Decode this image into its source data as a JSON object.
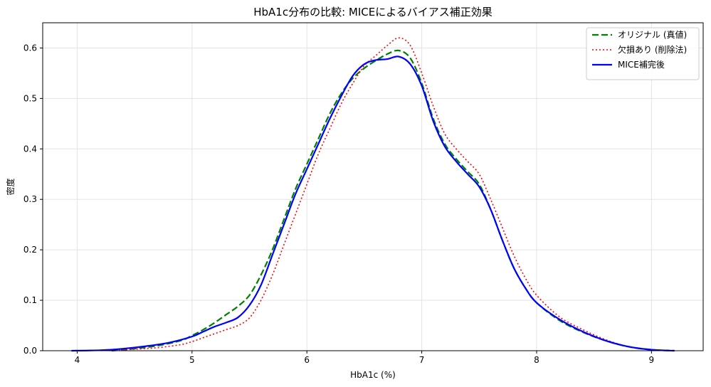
{
  "chart_data": {
    "type": "line",
    "title": "HbA1c分布の比較: MICEによるバイアス補正効果",
    "xlabel": "HbA1c (%)",
    "ylabel": "密度",
    "xlim": [
      3.7,
      9.45
    ],
    "ylim": [
      0,
      0.65
    ],
    "xticks": [
      "4",
      "5",
      "6",
      "7",
      "8",
      "9"
    ],
    "yticks": [
      "0.0",
      "0.1",
      "0.2",
      "0.3",
      "0.4",
      "0.5",
      "0.6"
    ],
    "grid": true,
    "legend_position": "top-right",
    "series": [
      {
        "name": "オリジナル (真値)",
        "color": "#008000",
        "style": "dashed",
        "x": [
          4.3,
          4.5,
          4.7,
          4.9,
          5.0,
          5.1,
          5.2,
          5.3,
          5.4,
          5.5,
          5.6,
          5.7,
          5.8,
          5.9,
          6.0,
          6.1,
          6.2,
          6.3,
          6.4,
          6.5,
          6.6,
          6.7,
          6.8,
          6.9,
          7.0,
          7.1,
          7.2,
          7.3,
          7.4,
          7.5,
          7.6,
          7.7,
          7.8,
          7.9,
          8.0,
          8.2,
          8.4,
          8.6,
          8.8,
          9.0,
          9.2
        ],
        "y": [
          0.0,
          0.004,
          0.01,
          0.02,
          0.03,
          0.042,
          0.056,
          0.072,
          0.088,
          0.11,
          0.15,
          0.2,
          0.26,
          0.32,
          0.37,
          0.42,
          0.47,
          0.51,
          0.54,
          0.56,
          0.575,
          0.588,
          0.595,
          0.58,
          0.53,
          0.46,
          0.41,
          0.38,
          0.355,
          0.33,
          0.28,
          0.22,
          0.165,
          0.125,
          0.095,
          0.06,
          0.037,
          0.02,
          0.008,
          0.002,
          0.0
        ]
      },
      {
        "name": "欠損あり (削除法)",
        "color": "#ff0000",
        "style": "dotted",
        "x": [
          4.3,
          4.5,
          4.7,
          4.9,
          5.0,
          5.1,
          5.2,
          5.3,
          5.4,
          5.5,
          5.6,
          5.7,
          5.8,
          5.9,
          6.0,
          6.1,
          6.2,
          6.3,
          6.4,
          6.5,
          6.6,
          6.7,
          6.8,
          6.9,
          7.0,
          7.1,
          7.2,
          7.3,
          7.4,
          7.5,
          7.6,
          7.7,
          7.8,
          7.9,
          8.0,
          8.2,
          8.4,
          8.6,
          8.8,
          9.0,
          9.2
        ],
        "y": [
          0.0,
          0.003,
          0.006,
          0.012,
          0.018,
          0.026,
          0.034,
          0.042,
          0.05,
          0.065,
          0.1,
          0.15,
          0.21,
          0.27,
          0.33,
          0.39,
          0.44,
          0.49,
          0.53,
          0.565,
          0.585,
          0.605,
          0.62,
          0.605,
          0.55,
          0.485,
          0.43,
          0.4,
          0.375,
          0.35,
          0.3,
          0.245,
          0.19,
          0.145,
          0.11,
          0.067,
          0.042,
          0.022,
          0.008,
          0.002,
          0.0
        ]
      },
      {
        "name": "MICE補完後",
        "color": "#0000ff",
        "style": "solid",
        "x": [
          3.95,
          4.2,
          4.4,
          4.6,
          4.8,
          5.0,
          5.1,
          5.2,
          5.3,
          5.4,
          5.5,
          5.6,
          5.7,
          5.8,
          5.9,
          6.0,
          6.1,
          6.2,
          6.3,
          6.4,
          6.5,
          6.6,
          6.7,
          6.8,
          6.9,
          7.0,
          7.1,
          7.2,
          7.3,
          7.4,
          7.5,
          7.6,
          7.7,
          7.8,
          7.9,
          8.0,
          8.2,
          8.4,
          8.6,
          8.8,
          9.0,
          9.2
        ],
        "y": [
          0.0,
          0.001,
          0.004,
          0.009,
          0.016,
          0.028,
          0.038,
          0.048,
          0.056,
          0.066,
          0.09,
          0.13,
          0.19,
          0.25,
          0.31,
          0.36,
          0.41,
          0.46,
          0.505,
          0.545,
          0.568,
          0.576,
          0.578,
          0.583,
          0.568,
          0.525,
          0.455,
          0.405,
          0.375,
          0.35,
          0.325,
          0.28,
          0.22,
          0.165,
          0.125,
          0.095,
          0.062,
          0.038,
          0.02,
          0.008,
          0.002,
          0.0
        ]
      }
    ]
  }
}
